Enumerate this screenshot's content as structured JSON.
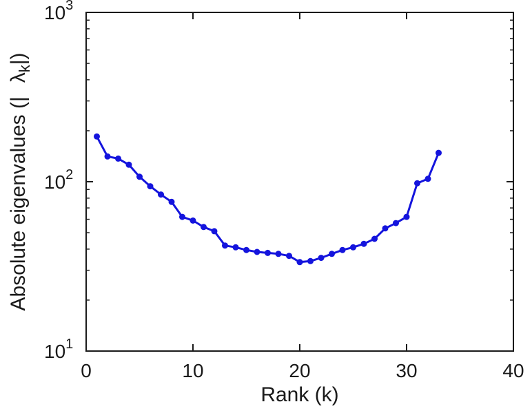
{
  "chart_data": {
    "type": "line",
    "title": "",
    "xlabel": "Rank (k)",
    "ylabel_parts": {
      "prefix": "Absolute eigenvalues (|",
      "symbol": "λ",
      "subscript": "k",
      "suffix": "|)"
    },
    "x": [
      1,
      2,
      3,
      4,
      5,
      6,
      7,
      8,
      9,
      10,
      11,
      12,
      13,
      14,
      15,
      16,
      17,
      18,
      19,
      20,
      21,
      22,
      23,
      24,
      25,
      26,
      27,
      28,
      29,
      30,
      31,
      32,
      33
    ],
    "series": [
      {
        "name": "absolute-eigenvalues",
        "values": [
          185,
          141,
          137,
          126,
          107,
          94,
          84,
          76,
          62,
          59,
          54,
          51,
          42,
          41,
          39.5,
          38.5,
          38,
          37.5,
          36.5,
          33.5,
          34,
          35.5,
          37.5,
          39.5,
          41,
          43,
          46,
          53,
          57,
          62,
          98,
          104,
          148
        ]
      }
    ],
    "xlim": [
      0,
      40
    ],
    "ylim": [
      10,
      1000
    ],
    "yscale": "log",
    "xticks": [
      0,
      10,
      20,
      30,
      40
    ],
    "ytick_exponents": [
      1,
      2,
      3
    ],
    "grid": false,
    "legend": "none",
    "line_color": "#1414dd",
    "marker": "circle",
    "axis_color": "#1a1a1a",
    "background": "#ffffff"
  }
}
